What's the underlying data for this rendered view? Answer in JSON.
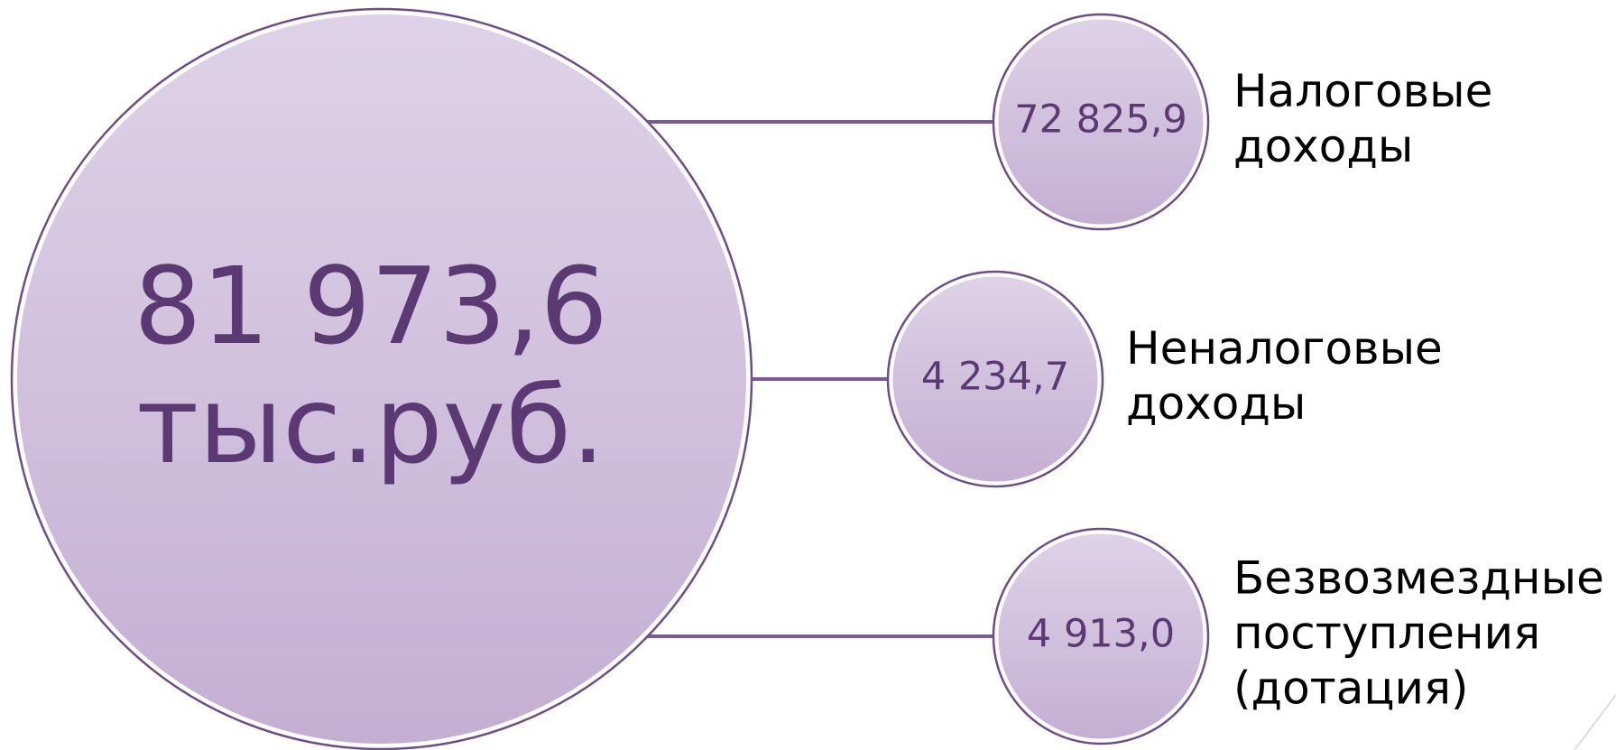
{
  "center": {
    "lines": [
      "81 973,6",
      "тыс.руб."
    ]
  },
  "nodes": [
    {
      "value": "72 825,9",
      "label_lines": [
        "Налоговые",
        "доходы"
      ]
    },
    {
      "value": "4 234,7",
      "label_lines": [
        "Неналоговые",
        "доходы"
      ]
    },
    {
      "value": "4 913,0",
      "label_lines": [
        "Безвозмездные",
        "поступления",
        "(дотация)"
      ]
    }
  ]
}
